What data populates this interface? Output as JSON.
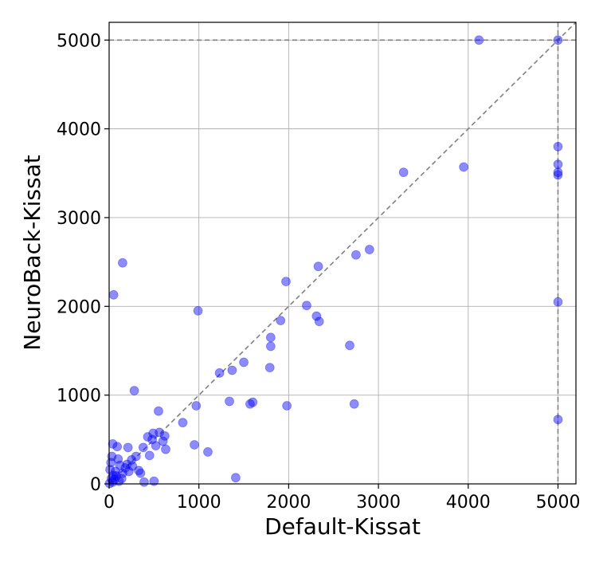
{
  "chart_data": {
    "type": "scatter",
    "title": "",
    "xlabel": "Default-Kissat",
    "ylabel": "NeuroBack-Kissat",
    "xlim": [
      0,
      5200
    ],
    "ylim": [
      0,
      5200
    ],
    "xticks": [
      0,
      1000,
      2000,
      3000,
      4000,
      5000
    ],
    "yticks": [
      0,
      1000,
      2000,
      3000,
      4000,
      5000
    ],
    "grid": true,
    "legend": "none",
    "point_color": "#0000ff",
    "point_alpha": 0.45,
    "reference_lines": [
      {
        "kind": "diagonal",
        "from": [
          0,
          0
        ],
        "to": [
          5200,
          5200
        ],
        "style": "dashed",
        "color": "#808080"
      },
      {
        "kind": "horizontal",
        "y": 5000,
        "style": "dashed",
        "color": "#808080"
      },
      {
        "kind": "vertical",
        "x": 5000,
        "style": "dashed",
        "color": "#808080"
      }
    ],
    "points": [
      [
        4120,
        5000
      ],
      [
        5000,
        5000
      ],
      [
        5000,
        3800
      ],
      [
        5000,
        3600
      ],
      [
        5000,
        3510
      ],
      [
        5000,
        3480
      ],
      [
        5000,
        2050
      ],
      [
        5000,
        725
      ],
      [
        3280,
        3510
      ],
      [
        3950,
        3570
      ],
      [
        2900,
        2640
      ],
      [
        2750,
        2580
      ],
      [
        2330,
        2450
      ],
      [
        1970,
        2280
      ],
      [
        2200,
        2010
      ],
      [
        2310,
        1890
      ],
      [
        2340,
        1830
      ],
      [
        1910,
        1840
      ],
      [
        1800,
        1650
      ],
      [
        1800,
        1550
      ],
      [
        1790,
        1310
      ],
      [
        2680,
        1560
      ],
      [
        150,
        2490
      ],
      [
        50,
        2130
      ],
      [
        990,
        1950
      ],
      [
        1230,
        1250
      ],
      [
        1370,
        1280
      ],
      [
        1500,
        1370
      ],
      [
        2730,
        900
      ],
      [
        1980,
        880
      ],
      [
        1600,
        920
      ],
      [
        1570,
        900
      ],
      [
        1340,
        930
      ],
      [
        280,
        1050
      ],
      [
        550,
        820
      ],
      [
        970,
        880
      ],
      [
        820,
        690
      ],
      [
        950,
        440
      ],
      [
        1100,
        360
      ],
      [
        1410,
        70
      ],
      [
        620,
        540
      ],
      [
        600,
        480
      ],
      [
        630,
        390
      ],
      [
        560,
        580
      ],
      [
        490,
        570
      ],
      [
        480,
        500
      ],
      [
        430,
        530
      ],
      [
        520,
        430
      ],
      [
        450,
        320
      ],
      [
        500,
        30
      ],
      [
        390,
        20
      ],
      [
        380,
        410
      ],
      [
        330,
        150
      ],
      [
        300,
        310
      ],
      [
        250,
        270
      ],
      [
        210,
        410
      ],
      [
        200,
        220
      ],
      [
        180,
        180
      ],
      [
        150,
        120
      ],
      [
        120,
        210
      ],
      [
        100,
        280
      ],
      [
        90,
        420
      ],
      [
        80,
        90
      ],
      [
        40,
        450
      ],
      [
        30,
        310
      ],
      [
        20,
        240
      ],
      [
        10,
        160
      ],
      [
        60,
        50
      ],
      [
        40,
        20
      ],
      [
        5,
        5
      ],
      [
        220,
        140
      ],
      [
        260,
        200
      ],
      [
        350,
        120
      ],
      [
        140,
        60
      ],
      [
        110,
        30
      ],
      [
        70,
        140
      ],
      [
        45,
        95
      ],
      [
        25,
        60
      ]
    ]
  }
}
